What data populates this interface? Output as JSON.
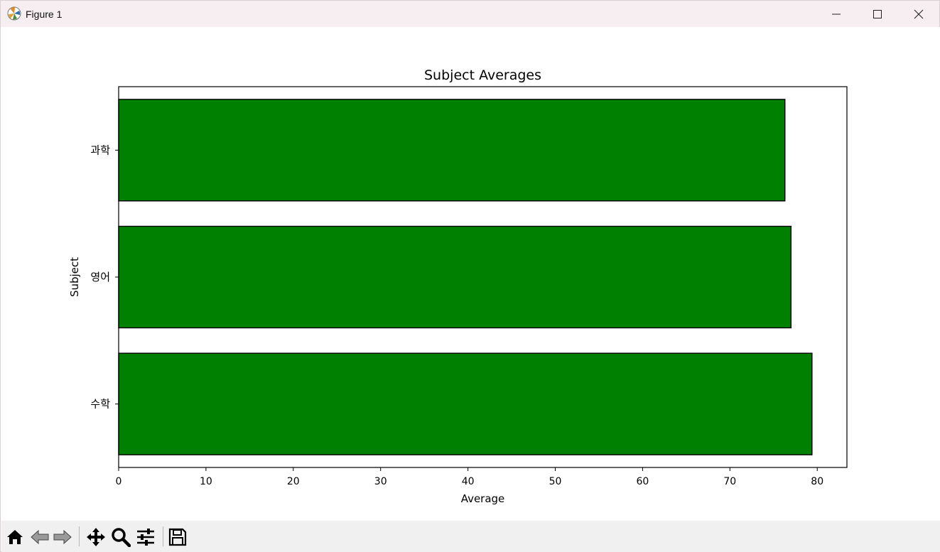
{
  "window": {
    "title": "Figure 1"
  },
  "toolbar": {
    "buttons": [
      {
        "name": "home-icon",
        "tooltip": "Home"
      },
      {
        "name": "back-arrow-icon",
        "tooltip": "Back"
      },
      {
        "name": "forward-arrow-icon",
        "tooltip": "Forward"
      },
      {
        "name": "pan-icon",
        "tooltip": "Pan"
      },
      {
        "name": "zoom-icon",
        "tooltip": "Zoom"
      },
      {
        "name": "configure-subplots-icon",
        "tooltip": "Subplots"
      },
      {
        "name": "save-icon",
        "tooltip": "Save"
      }
    ]
  },
  "chart_data": {
    "type": "bar",
    "orientation": "horizontal",
    "title": "Subject Averages",
    "xlabel": "Average",
    "ylabel": "Subject",
    "categories": [
      "수학",
      "영어",
      "과학"
    ],
    "values": [
      79.4,
      77.0,
      76.3
    ],
    "xlim": [
      0,
      83.4
    ],
    "xticks": [
      0,
      10,
      20,
      30,
      40,
      50,
      60,
      70,
      80
    ],
    "bar_color": "#008000",
    "edge_color": "#000000",
    "grid": false,
    "legend": false
  }
}
